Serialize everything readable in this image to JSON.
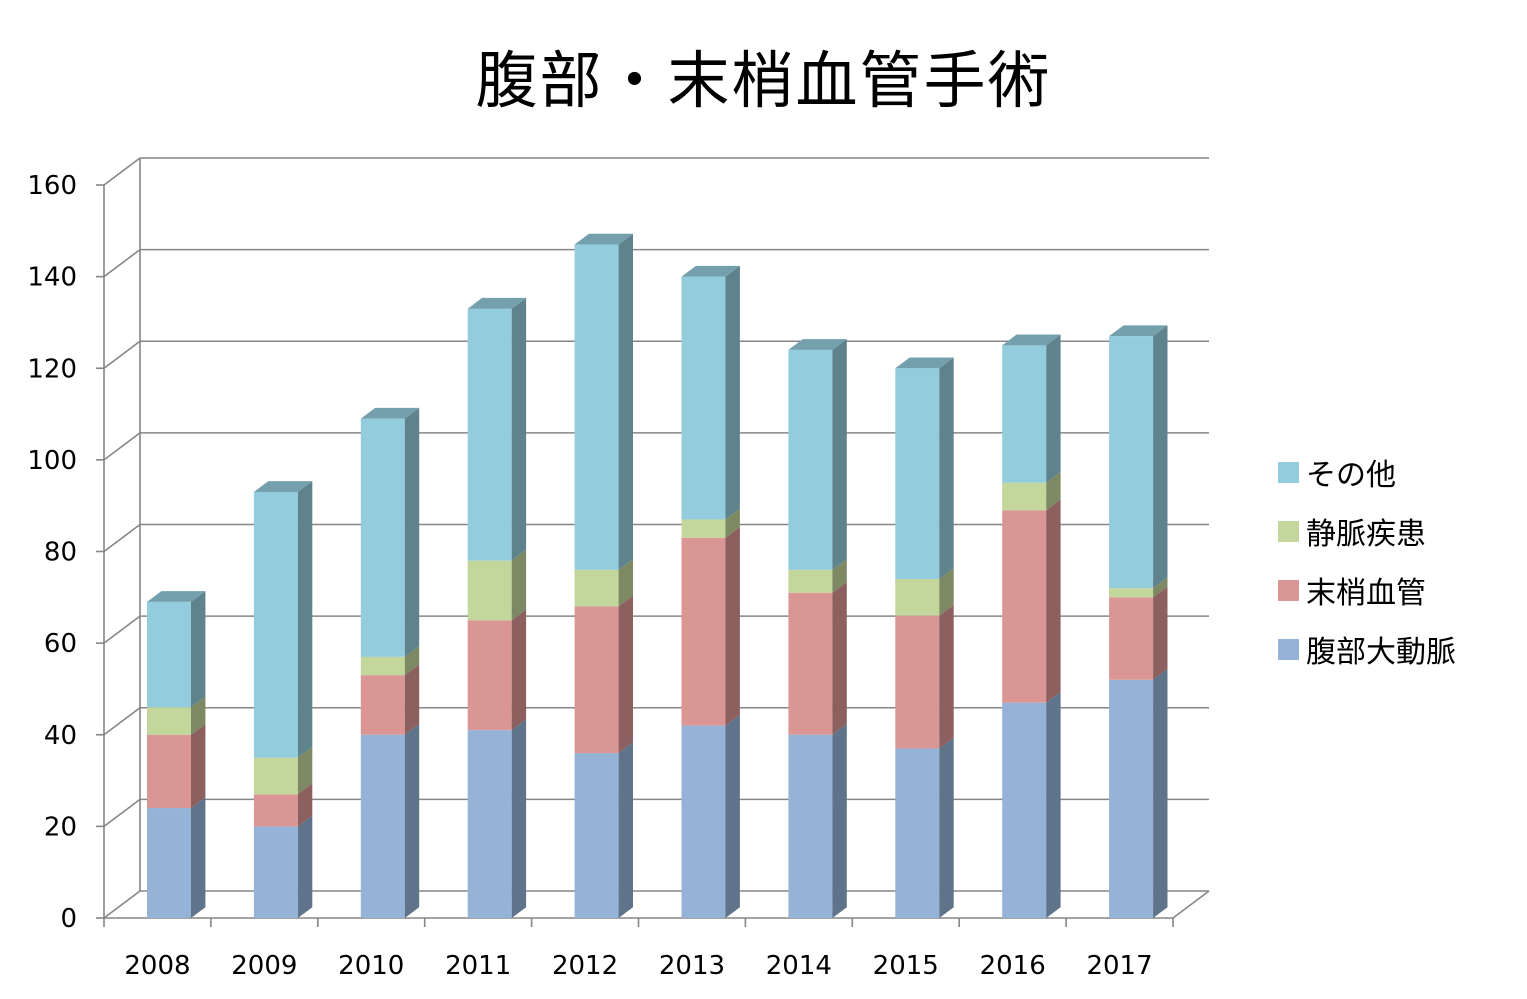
{
  "chart_data": {
    "type": "bar",
    "stacked": true,
    "three_d": true,
    "title": "腹部・末梢血管手術",
    "xlabel": "",
    "ylabel": "",
    "categories": [
      "2008",
      "2009",
      "2010",
      "2011",
      "2012",
      "2013",
      "2014",
      "2015",
      "2016",
      "2017"
    ],
    "y_ticks": [
      "0",
      "20",
      "40",
      "60",
      "80",
      "100",
      "120",
      "140",
      "160"
    ],
    "ylim": [
      0,
      160
    ],
    "grid": true,
    "legend_position": "right",
    "series": [
      {
        "name": "腹部大動脈",
        "color": "#95b3d7",
        "values": [
          24,
          20,
          40,
          41,
          36,
          42,
          40,
          37,
          47,
          52
        ]
      },
      {
        "name": "末梢血管",
        "color": "#d99694",
        "values": [
          16,
          7,
          13,
          24,
          32,
          41,
          31,
          29,
          42,
          18
        ]
      },
      {
        "name": "静脈疾患",
        "color": "#c3d69b",
        "values": [
          6,
          8,
          4,
          13,
          8,
          4,
          5,
          8,
          6,
          2
        ]
      },
      {
        "name": "その他",
        "color": "#93cddd",
        "values": [
          23,
          58,
          52,
          55,
          71,
          53,
          48,
          46,
          30,
          55
        ]
      }
    ]
  }
}
